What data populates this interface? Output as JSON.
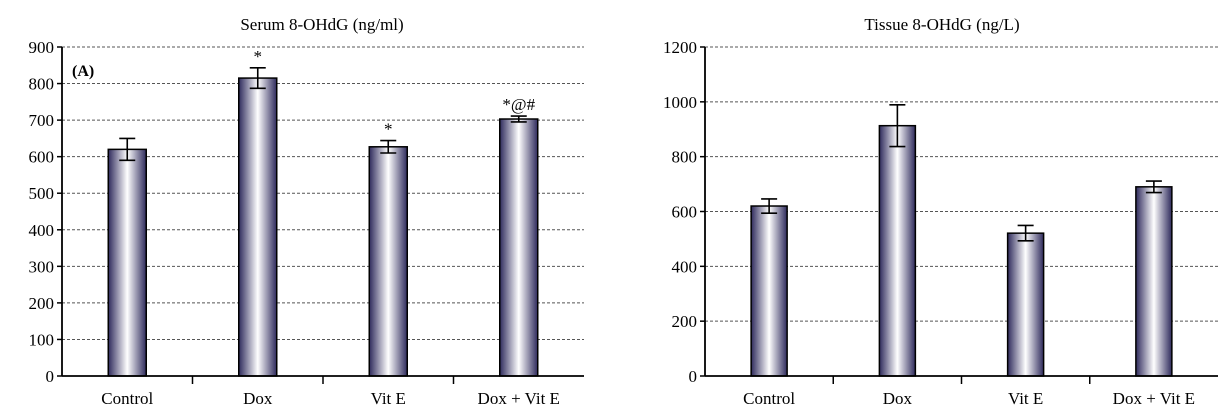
{
  "colors": {
    "bar_dark": "#2e2a5c",
    "bar_light": "#ffffff",
    "bar_mid": "#6d66a8",
    "grid": "#555555",
    "axis": "#000000"
  },
  "chart_data": [
    {
      "type": "bar",
      "title": "Serum 8-OHdG (ng/ml)",
      "panel_label": "(A)",
      "categories": [
        "Control",
        "Dox",
        "Vit E",
        "Dox + Vit E"
      ],
      "values": [
        620,
        815,
        627,
        703
      ],
      "errors": [
        30,
        28,
        17,
        8
      ],
      "annotations": [
        "",
        "*",
        "*",
        "*@#"
      ],
      "ylim": [
        0,
        900
      ],
      "yticks": [
        0,
        100,
        200,
        300,
        400,
        500,
        600,
        700,
        800,
        900
      ],
      "grid": true
    },
    {
      "type": "bar",
      "title": "Tissue 8-OHdG (ng/L)",
      "categories": [
        "Control",
        "Dox",
        "Vit E",
        "Dox + Vit E"
      ],
      "values": [
        620,
        913,
        521,
        690
      ],
      "errors": [
        26,
        76,
        28,
        21
      ],
      "annotations": [
        "",
        "",
        "",
        ""
      ],
      "ylim": [
        0,
        1200
      ],
      "yticks": [
        0,
        200,
        400,
        600,
        800,
        1000,
        1200
      ],
      "grid": true
    }
  ]
}
